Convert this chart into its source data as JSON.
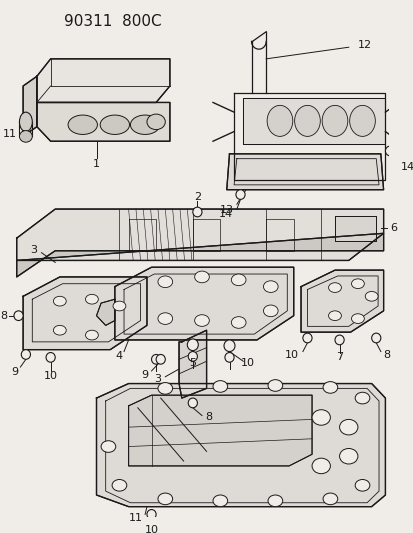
{
  "title": "90311  800C",
  "bg": "#f0ede8",
  "lc": "#1a1a1a",
  "title_fs": 11,
  "label_fs": 8,
  "fig_w": 4.14,
  "fig_h": 5.33,
  "dpi": 100
}
